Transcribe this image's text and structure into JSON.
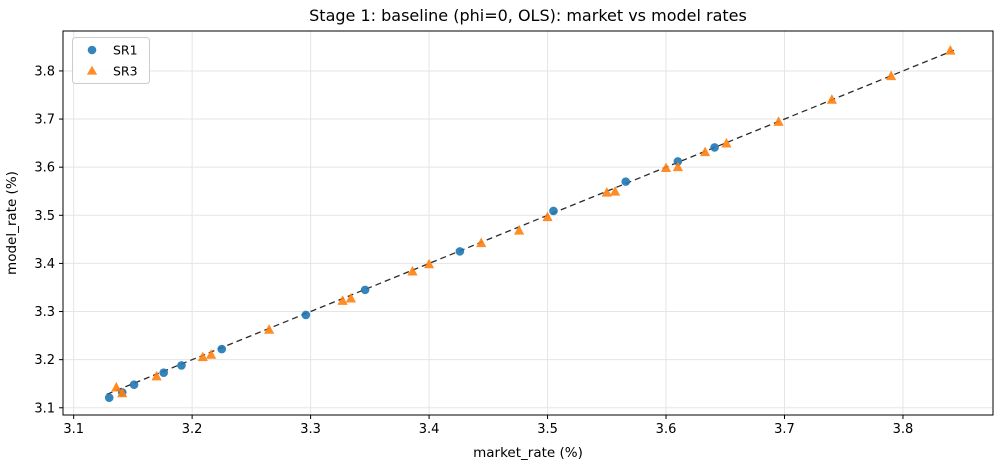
{
  "chart_data": {
    "type": "scatter",
    "title": "Stage 1: baseline (phi=0, OLS): market vs model rates",
    "xlabel": "market_rate (%)",
    "ylabel": "model_rate (%)",
    "xlim": [
      3.091,
      3.876
    ],
    "ylim": [
      3.085,
      3.883
    ],
    "xticks": [
      3.1,
      3.2,
      3.3,
      3.4,
      3.5,
      3.6,
      3.7,
      3.8
    ],
    "yticks": [
      3.1,
      3.2,
      3.3,
      3.4,
      3.5,
      3.6,
      3.7,
      3.8
    ],
    "grid": true,
    "grid_color": "#e5e5e5",
    "legend": {
      "position": "upper-left",
      "border_color": "#cccccc"
    },
    "reference_line": {
      "style": "dashed",
      "color": "#2b2b2b",
      "x": [
        3.128,
        3.843
      ],
      "y": [
        3.128,
        3.843
      ]
    },
    "series": [
      {
        "name": "SR1",
        "marker": "circle",
        "color": "#1f77b4",
        "points": [
          [
            3.13,
            3.121
          ],
          [
            3.141,
            3.132
          ],
          [
            3.151,
            3.148
          ],
          [
            3.176,
            3.173
          ],
          [
            3.191,
            3.188
          ],
          [
            3.225,
            3.222
          ],
          [
            3.296,
            3.293
          ],
          [
            3.346,
            3.345
          ],
          [
            3.426,
            3.425
          ],
          [
            3.505,
            3.509
          ],
          [
            3.566,
            3.57
          ],
          [
            3.61,
            3.612
          ],
          [
            3.641,
            3.641
          ]
        ]
      },
      {
        "name": "SR3",
        "marker": "triangle-up",
        "color": "#ff7f0e",
        "points": [
          [
            3.136,
            3.143
          ],
          [
            3.141,
            3.131
          ],
          [
            3.17,
            3.166
          ],
          [
            3.209,
            3.206
          ],
          [
            3.216,
            3.211
          ],
          [
            3.265,
            3.263
          ],
          [
            3.327,
            3.323
          ],
          [
            3.334,
            3.328
          ],
          [
            3.386,
            3.384
          ],
          [
            3.4,
            3.399
          ],
          [
            3.444,
            3.443
          ],
          [
            3.476,
            3.469
          ],
          [
            3.5,
            3.497
          ],
          [
            3.55,
            3.548
          ],
          [
            3.557,
            3.55
          ],
          [
            3.6,
            3.599
          ],
          [
            3.61,
            3.601
          ],
          [
            3.633,
            3.632
          ],
          [
            3.651,
            3.65
          ],
          [
            3.695,
            3.695
          ],
          [
            3.74,
            3.741
          ],
          [
            3.79,
            3.79
          ],
          [
            3.84,
            3.843
          ]
        ]
      }
    ]
  }
}
